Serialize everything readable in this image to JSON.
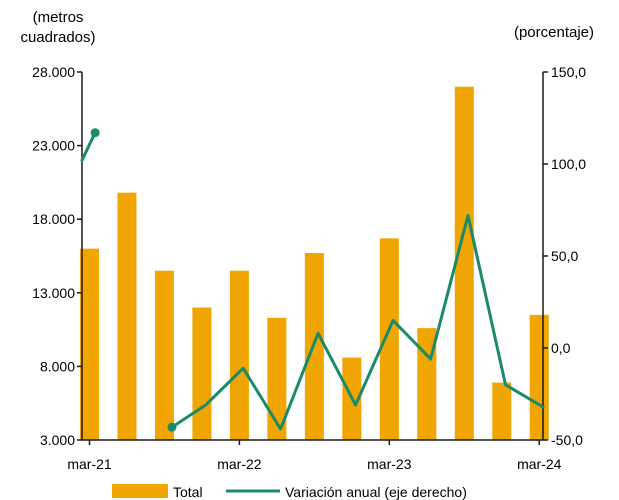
{
  "chart_data": {
    "type": "bar",
    "left_axis_title": [
      "(metros",
      "cuadrados)"
    ],
    "right_axis_title": "(porcentaje)",
    "left_ylim": [
      3000,
      28000
    ],
    "right_ylim": [
      -50,
      150
    ],
    "left_ticks": [
      3000,
      8000,
      13000,
      18000,
      23000,
      28000
    ],
    "left_tick_labels": [
      "3.000",
      "8.000",
      "13.000",
      "18.000",
      "23.000",
      "28.000"
    ],
    "right_ticks": [
      -50,
      0,
      50,
      100,
      150
    ],
    "right_tick_labels": [
      "-50,0",
      "0,0",
      "50,0",
      "100,0",
      "150,0"
    ],
    "x_tick_labels": [
      "mar-21",
      "mar-22",
      "mar-23",
      "mar-24"
    ],
    "x_tick_positions": [
      0,
      4,
      8,
      12
    ],
    "n_periods": 13,
    "x_start": -0.2,
    "x_end": 12.1,
    "series": [
      {
        "name": "Total",
        "kind": "bar",
        "axis": "left",
        "color": "#F0A500",
        "values": [
          16000,
          19800,
          14500,
          12000,
          14500,
          11300,
          15700,
          8600,
          16700,
          10600,
          27000,
          6900,
          11500
        ]
      },
      {
        "name": "Variación anual (eje derecho)",
        "kind": "line",
        "axis": "right",
        "color": "#1B8A6B",
        "segments": [
          [
            [
              -0.2,
              102
            ],
            [
              0.15,
              117
            ]
          ],
          [
            [
              2.2,
              -43
            ],
            [
              3.1,
              -31
            ],
            [
              4.1,
              -11
            ],
            [
              5.1,
              -44
            ],
            [
              6.1,
              8
            ],
            [
              7.1,
              -31
            ],
            [
              8.1,
              15
            ],
            [
              9.1,
              -6
            ],
            [
              10.1,
              72
            ],
            [
              11.1,
              -20
            ],
            [
              12.1,
              -32
            ]
          ]
        ]
      }
    ]
  }
}
